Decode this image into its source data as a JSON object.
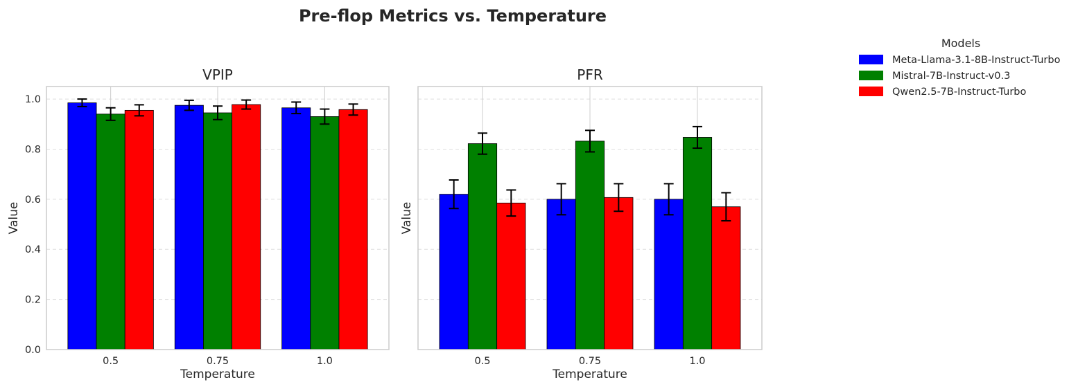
{
  "figure": {
    "title": "Pre-flop Metrics vs. Temperature"
  },
  "legend": {
    "title": "Models",
    "placement": "outside-top-right"
  },
  "colors": {
    "Meta-Llama-3.1-8B-Instruct-Turbo": "#0000ff",
    "Mistral-7B-Instruct-v0.3": "#008000",
    "Qwen2.5-7B-Instruct-Turbo": "#ff0000",
    "grid": "#dddddd",
    "spine": "#cccccc",
    "error_bar": "#000000"
  },
  "chart_data": [
    {
      "type": "bar",
      "title": "VPIP",
      "xlabel": "Temperature",
      "ylabel": "Value",
      "categories": [
        "0.5",
        "0.75",
        "1.0"
      ],
      "ylim": [
        0,
        1.05
      ],
      "yticks": [
        "0.0",
        "0.2",
        "0.4",
        "0.6",
        "0.8",
        "1.0"
      ],
      "grid": true,
      "series": [
        {
          "name": "Meta-Llama-3.1-8B-Instruct-Turbo",
          "values": [
            0.985,
            0.975,
            0.965
          ],
          "errors": [
            0.015,
            0.02,
            0.023
          ]
        },
        {
          "name": "Mistral-7B-Instruct-v0.3",
          "values": [
            0.94,
            0.945,
            0.93
          ],
          "errors": [
            0.025,
            0.027,
            0.03
          ]
        },
        {
          "name": "Qwen2.5-7B-Instruct-Turbo",
          "values": [
            0.955,
            0.978,
            0.958
          ],
          "errors": [
            0.022,
            0.018,
            0.022
          ]
        }
      ]
    },
    {
      "type": "bar",
      "title": "PFR",
      "xlabel": "Temperature",
      "ylabel": "Value",
      "categories": [
        "0.5",
        "0.75",
        "1.0"
      ],
      "ylim": [
        0,
        1.05
      ],
      "grid": true,
      "series": [
        {
          "name": "Meta-Llama-3.1-8B-Instruct-Turbo",
          "values": [
            0.62,
            0.6,
            0.6
          ],
          "errors": [
            0.057,
            0.062,
            0.062
          ]
        },
        {
          "name": "Mistral-7B-Instruct-v0.3",
          "values": [
            0.822,
            0.832,
            0.847
          ],
          "errors": [
            0.042,
            0.043,
            0.043
          ]
        },
        {
          "name": "Qwen2.5-7B-Instruct-Turbo",
          "values": [
            0.585,
            0.607,
            0.57
          ],
          "errors": [
            0.052,
            0.055,
            0.056
          ]
        }
      ]
    }
  ]
}
